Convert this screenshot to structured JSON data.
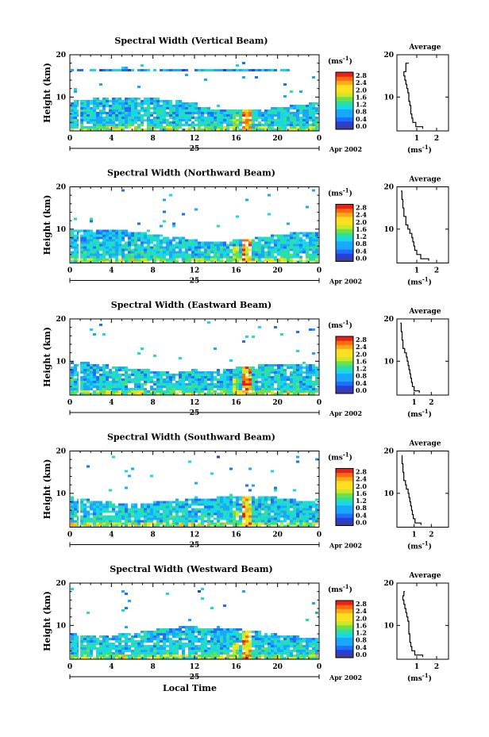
{
  "chart_data": [
    {
      "type": "heatmap",
      "title": "Spectral Width (Vertical Beam)",
      "ylabel": "Height (km)",
      "ylim": [
        2,
        20
      ],
      "y_ticks": [
        "20",
        "10"
      ],
      "xlim": [
        0,
        24
      ],
      "x_ticks": [
        "0",
        "4",
        "8",
        "12",
        "16",
        "20",
        "0"
      ],
      "date_label": "25",
      "date_suffix": "Apr 2002",
      "colorbar": {
        "unit": "(ms-1)",
        "range": [
          0.0,
          2.8
        ],
        "ticks": [
          "2.8",
          "2.4",
          "2.0",
          "1.6",
          "1.2",
          "0.8",
          "0.4",
          "0.0"
        ]
      },
      "average": {
        "title": "Average",
        "xlabel": "(ms-1)",
        "xlim": [
          0,
          2.6
        ],
        "x_ticks": [
          "1",
          "2"
        ],
        "y_ticks": [
          "20",
          "10"
        ],
        "profile": [
          [
            0.6,
            18
          ],
          [
            0.45,
            17
          ],
          [
            0.45,
            16
          ],
          [
            0.35,
            15
          ],
          [
            0.4,
            14
          ],
          [
            0.45,
            13
          ],
          [
            0.5,
            12
          ],
          [
            0.55,
            11
          ],
          [
            0.6,
            10
          ],
          [
            0.6,
            9
          ],
          [
            0.65,
            8
          ],
          [
            0.7,
            7
          ],
          [
            0.7,
            6
          ],
          [
            0.75,
            5
          ],
          [
            0.8,
            4
          ],
          [
            0.95,
            3
          ],
          [
            1.3,
            2.5
          ]
        ]
      }
    },
    {
      "type": "heatmap",
      "title": "Spectral Width (Northward Beam)",
      "ylabel": "Height (km)",
      "ylim": [
        2,
        20
      ],
      "y_ticks": [
        "20",
        "10"
      ],
      "xlim": [
        0,
        24
      ],
      "x_ticks": [
        "0",
        "4",
        "8",
        "12",
        "16",
        "20",
        "0"
      ],
      "date_label": "25",
      "date_suffix": "Apr 2002",
      "colorbar": {
        "unit": "(ms-1)",
        "range": [
          0.0,
          2.8
        ],
        "ticks": [
          "2.8",
          "2.4",
          "2.0",
          "1.6",
          "1.2",
          "0.8",
          "0.4",
          "0.0"
        ]
      },
      "average": {
        "title": "Average",
        "xlabel": "(ms-1)",
        "xlim": [
          0,
          2.6
        ],
        "x_ticks": [
          "1",
          "2"
        ],
        "y_ticks": [
          "20",
          "10"
        ],
        "profile": [
          [
            0.2,
            19
          ],
          [
            0.25,
            17
          ],
          [
            0.3,
            15
          ],
          [
            0.35,
            13
          ],
          [
            0.45,
            11
          ],
          [
            0.55,
            10
          ],
          [
            0.65,
            9
          ],
          [
            0.75,
            8
          ],
          [
            0.8,
            7
          ],
          [
            0.85,
            6
          ],
          [
            0.9,
            5
          ],
          [
            1.0,
            4
          ],
          [
            1.2,
            3
          ],
          [
            1.6,
            2.5
          ]
        ]
      }
    },
    {
      "type": "heatmap",
      "title": "Spectral Width (Eastward Beam)",
      "ylabel": "Height (km)",
      "ylim": [
        2,
        20
      ],
      "y_ticks": [
        "20",
        "10"
      ],
      "xlim": [
        0,
        24
      ],
      "x_ticks": [
        "0",
        "4",
        "8",
        "12",
        "16",
        "20",
        "0"
      ],
      "date_label": "25",
      "date_suffix": "Apr 2002",
      "colorbar": {
        "unit": "(ms-1)",
        "range": [
          0.0,
          2.8
        ],
        "ticks": [
          "2.8",
          "2.4",
          "2.0",
          "1.6",
          "1.2",
          "0.8",
          "0.4",
          "0.0"
        ]
      },
      "average": {
        "title": "Average",
        "xlabel": "(ms-1)",
        "xlim": [
          0,
          3.0
        ],
        "x_ticks": [
          "1",
          "2"
        ],
        "y_ticks": [
          "20",
          "10"
        ],
        "profile": [
          [
            0.2,
            19
          ],
          [
            0.25,
            17
          ],
          [
            0.3,
            15
          ],
          [
            0.35,
            13
          ],
          [
            0.45,
            12
          ],
          [
            0.55,
            11
          ],
          [
            0.6,
            10
          ],
          [
            0.65,
            9
          ],
          [
            0.7,
            8
          ],
          [
            0.75,
            7
          ],
          [
            0.8,
            6
          ],
          [
            0.85,
            5
          ],
          [
            0.9,
            4
          ],
          [
            1.0,
            3
          ],
          [
            1.3,
            2.5
          ]
        ]
      }
    },
    {
      "type": "heatmap",
      "title": "Spectral Width (Southward Beam)",
      "ylabel": "Height (km)",
      "ylim": [
        2,
        20
      ],
      "y_ticks": [
        "20",
        "10"
      ],
      "xlim": [
        0,
        24
      ],
      "x_ticks": [
        "0",
        "4",
        "8",
        "12",
        "16",
        "20",
        "0"
      ],
      "date_label": "25",
      "date_suffix": "Apr 2002",
      "colorbar": {
        "unit": "(ms-1)",
        "range": [
          0.0,
          2.8
        ],
        "ticks": [
          "2.8",
          "2.4",
          "2.0",
          "1.6",
          "1.2",
          "0.8",
          "0.4",
          "0.0"
        ]
      },
      "average": {
        "title": "Average",
        "xlabel": "(ms-1)",
        "xlim": [
          0,
          3.0
        ],
        "x_ticks": [
          "1",
          "2"
        ],
        "y_ticks": [
          "20",
          "10"
        ],
        "profile": [
          [
            0.3,
            19
          ],
          [
            0.3,
            17
          ],
          [
            0.35,
            15
          ],
          [
            0.4,
            13
          ],
          [
            0.5,
            12
          ],
          [
            0.55,
            11
          ],
          [
            0.65,
            10
          ],
          [
            0.7,
            9
          ],
          [
            0.75,
            8
          ],
          [
            0.8,
            7
          ],
          [
            0.85,
            6
          ],
          [
            0.9,
            5
          ],
          [
            0.95,
            4
          ],
          [
            1.05,
            3
          ],
          [
            1.4,
            2.5
          ]
        ]
      }
    },
    {
      "type": "heatmap",
      "title": "Spectral Width (Westward Beam)",
      "ylabel": "Height (km)",
      "ylim": [
        2,
        20
      ],
      "y_ticks": [
        "20",
        "10"
      ],
      "xlim": [
        0,
        24
      ],
      "x_ticks": [
        "0",
        "4",
        "8",
        "12",
        "16",
        "20",
        "0"
      ],
      "date_label": "25",
      "date_suffix": "Apr 2002",
      "xlabel": "Local Time",
      "colorbar": {
        "unit": "(ms-1)",
        "range": [
          0.0,
          2.8
        ],
        "ticks": [
          "2.8",
          "2.4",
          "2.0",
          "1.6",
          "1.2",
          "0.8",
          "0.4",
          "0.0"
        ]
      },
      "average": {
        "title": "Average",
        "xlabel": "(ms-1)",
        "xlim": [
          0,
          2.6
        ],
        "x_ticks": [
          "1",
          "2"
        ],
        "y_ticks": [
          "20",
          "10"
        ],
        "profile": [
          [
            0.4,
            18
          ],
          [
            0.35,
            17
          ],
          [
            0.3,
            16
          ],
          [
            0.35,
            15
          ],
          [
            0.4,
            14
          ],
          [
            0.45,
            13
          ],
          [
            0.5,
            12
          ],
          [
            0.55,
            11
          ],
          [
            0.6,
            10
          ],
          [
            0.6,
            9
          ],
          [
            0.6,
            8
          ],
          [
            0.65,
            7
          ],
          [
            0.65,
            6
          ],
          [
            0.7,
            5
          ],
          [
            0.75,
            4
          ],
          [
            0.9,
            3
          ],
          [
            1.3,
            2.5
          ]
        ]
      }
    }
  ]
}
